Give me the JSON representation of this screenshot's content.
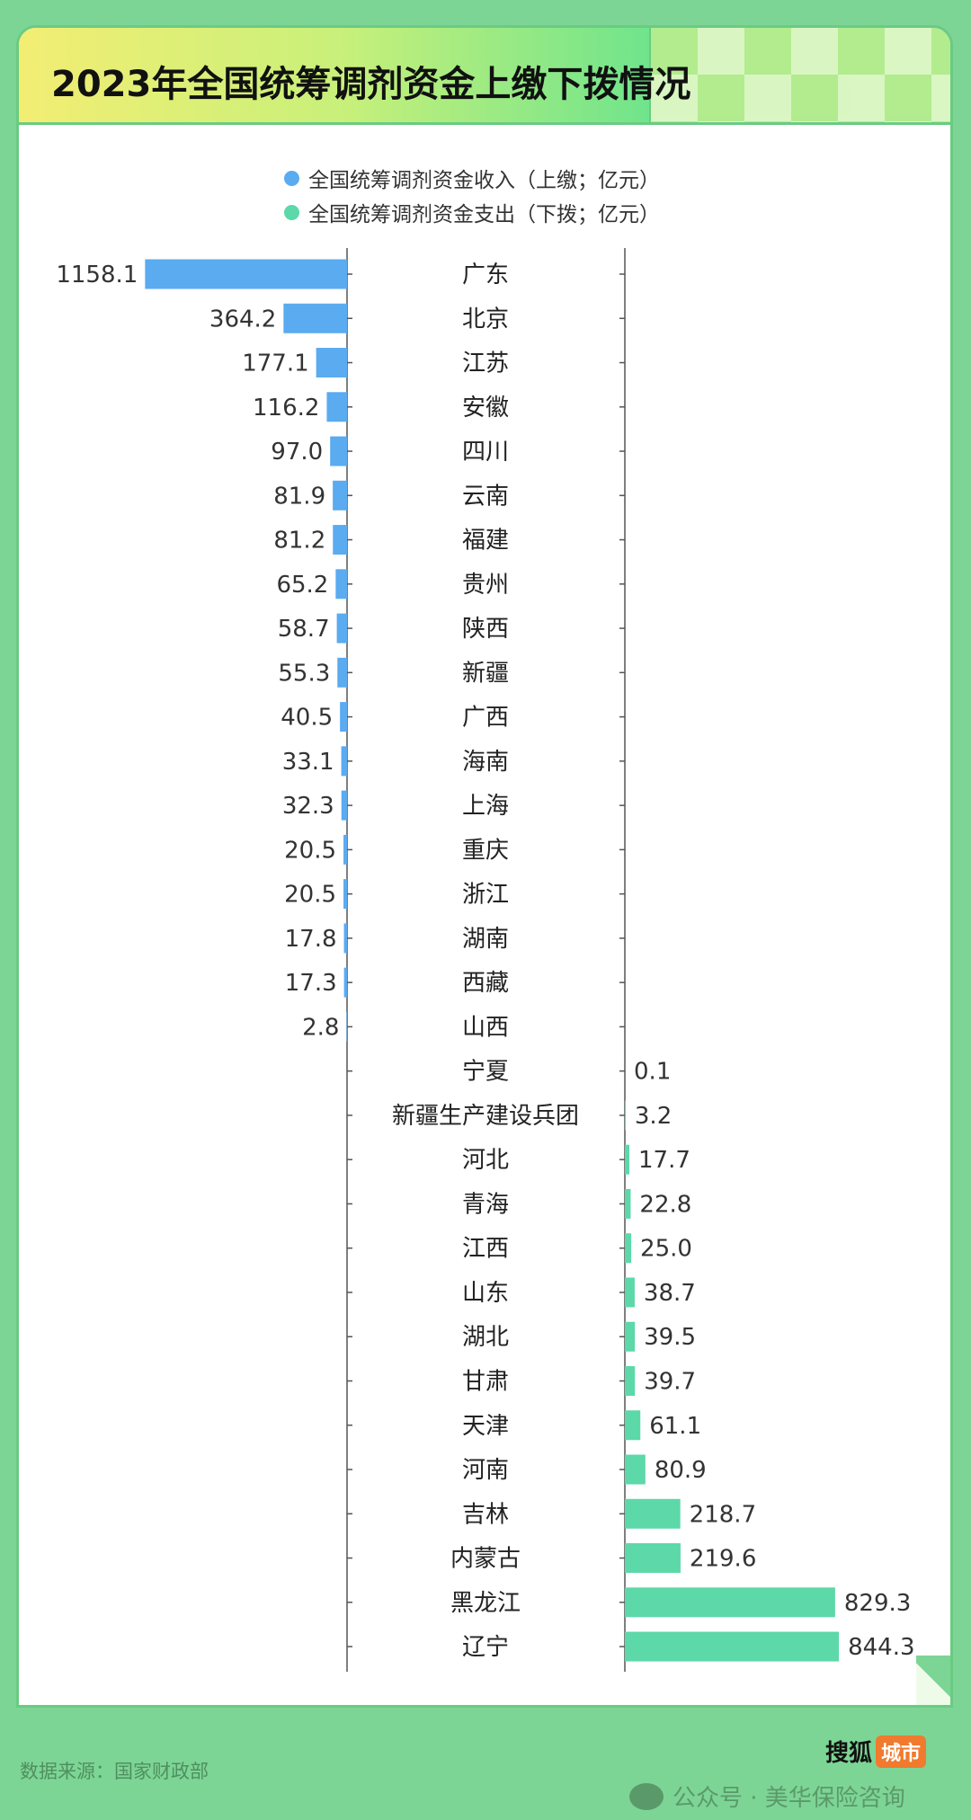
{
  "title": "2023年全国统筹调剂资金上缴下拨情况",
  "source": "数据来源：国家财政部",
  "watermark": {
    "wechat": "公众号 · 美华保险咨询",
    "sohu": "搜狐",
    "sohu_badge": "城市"
  },
  "colors": {
    "income": "#5aabf0",
    "expense": "#5cd8a9",
    "background": "#7dd595"
  },
  "chart_data": {
    "type": "bar",
    "title": "2023年全国统筹调剂资金上缴下拨情况",
    "legend_position": "top",
    "categories": [
      "广东",
      "北京",
      "江苏",
      "安徽",
      "四川",
      "云南",
      "福建",
      "贵州",
      "陕西",
      "新疆",
      "广西",
      "海南",
      "上海",
      "重庆",
      "浙江",
      "湖南",
      "西藏",
      "山西",
      "宁夏",
      "新疆生产建设兵团",
      "河北",
      "青海",
      "江西",
      "山东",
      "湖北",
      "甘肃",
      "天津",
      "河南",
      "吉林",
      "内蒙古",
      "黑龙江",
      "辽宁"
    ],
    "series": [
      {
        "name": "全国统筹调剂资金收入（上缴；亿元）",
        "values": [
          1158.1,
          364.2,
          177.1,
          116.2,
          97.0,
          81.9,
          81.2,
          65.2,
          58.7,
          55.3,
          40.5,
          33.1,
          32.3,
          20.5,
          20.5,
          17.8,
          17.3,
          2.8,
          null,
          null,
          null,
          null,
          null,
          null,
          null,
          null,
          null,
          null,
          null,
          null,
          null,
          null
        ]
      },
      {
        "name": "全国统筹调剂资金支出（下拨；亿元）",
        "values": [
          null,
          null,
          null,
          null,
          null,
          null,
          null,
          null,
          null,
          null,
          null,
          null,
          null,
          null,
          null,
          null,
          null,
          null,
          0.1,
          3.2,
          17.7,
          22.8,
          25.0,
          38.7,
          39.5,
          39.7,
          61.1,
          80.9,
          218.7,
          219.6,
          829.3,
          844.3
        ]
      }
    ]
  }
}
